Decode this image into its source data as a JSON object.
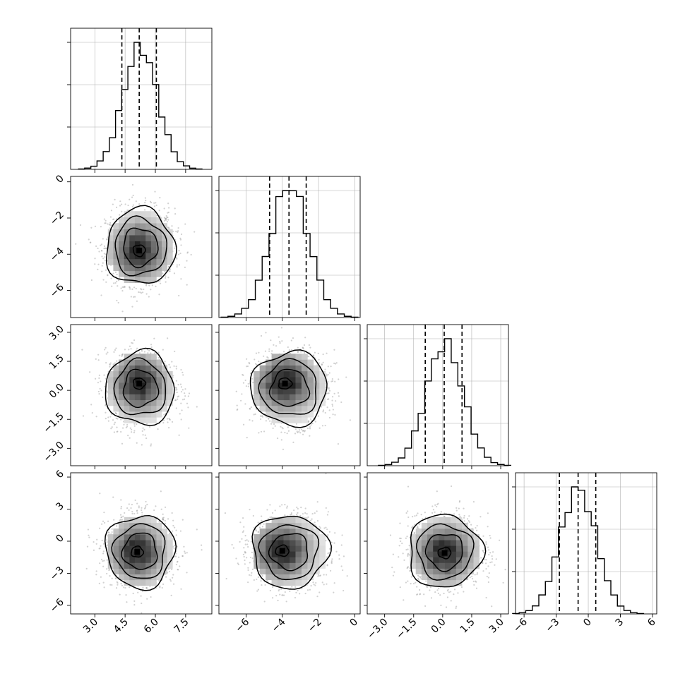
{
  "chart_data": {
    "type": "corner",
    "title": "",
    "variables": [
      {
        "name": "",
        "range": [
          1.8,
          8.8
        ],
        "ticks": [
          3.0,
          4.5,
          6.0,
          7.5
        ],
        "tick_labels": [
          "3.0",
          "4.5",
          "6.0",
          "7.5"
        ],
        "mean": 5.25,
        "sd": 0.85,
        "quantiles": [
          4.34,
          5.2,
          6.05
        ]
      },
      {
        "name": "",
        "range": [
          -7.5,
          0.3
        ],
        "ticks": [
          -6,
          -4,
          -2,
          0
        ],
        "tick_labels": [
          "−6",
          "−4",
          "−2",
          "0"
        ],
        "mean": -3.6,
        "sd": 1.05,
        "quantiles": [
          -4.7,
          -3.63,
          -2.68
        ]
      },
      {
        "name": "",
        "range": [
          -3.9,
          3.4
        ],
        "ticks": [
          -3.0,
          -1.5,
          0.0,
          1.5,
          3.0
        ],
        "tick_labels": [
          "−3.0",
          "−1.5",
          "0.0",
          "1.5",
          "3.0"
        ],
        "mean": 0.1,
        "sd": 0.95,
        "quantiles": [
          -0.9,
          0.08,
          1.0
        ]
      },
      {
        "name": "",
        "range": [
          -6.8,
          6.4
        ],
        "ticks": [
          -6,
          -3,
          0,
          3,
          6
        ],
        "tick_labels": [
          "−6",
          "−3",
          "0",
          "3",
          "6"
        ],
        "mean": -0.95,
        "sd": 1.7,
        "quantiles": [
          -2.7,
          -0.95,
          0.7
        ]
      }
    ],
    "histograms": [
      {
        "variable": 0,
        "bins": 20,
        "quantile_lines": "dashed"
      },
      {
        "variable": 1,
        "bins": 20,
        "quantile_lines": "dashed"
      },
      {
        "variable": 2,
        "bins": 20,
        "quantile_lines": "dashed"
      },
      {
        "variable": 3,
        "bins": 20,
        "quantile_lines": "dashed"
      }
    ],
    "pairs": [
      {
        "x": 0,
        "y": 1,
        "contour_levels": 4,
        "density_peak": [
          5.2,
          -3.8
        ]
      },
      {
        "x": 0,
        "y": 2,
        "contour_levels": 4,
        "density_peak": [
          5.2,
          0.35
        ]
      },
      {
        "x": 1,
        "y": 2,
        "contour_levels": 4,
        "density_peak": [
          -3.85,
          0.35
        ]
      },
      {
        "x": 0,
        "y": 3,
        "contour_levels": 4,
        "density_peak": [
          5.1,
          -1.0
        ]
      },
      {
        "x": 1,
        "y": 3,
        "contour_levels": 4,
        "density_peak": [
          -4.0,
          -0.9
        ]
      },
      {
        "x": 2,
        "y": 3,
        "contour_levels": 4,
        "density_peak": [
          0.1,
          -1.1
        ]
      }
    ],
    "grid": true,
    "legend": "none"
  }
}
